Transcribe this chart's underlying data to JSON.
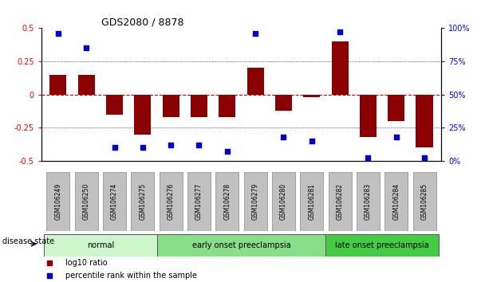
{
  "title": "GDS2080 / 8878",
  "samples": [
    "GSM106249",
    "GSM106250",
    "GSM106274",
    "GSM106275",
    "GSM106276",
    "GSM106277",
    "GSM106278",
    "GSM106279",
    "GSM106280",
    "GSM106281",
    "GSM106282",
    "GSM106283",
    "GSM106284",
    "GSM106285"
  ],
  "log10_ratio": [
    0.15,
    0.15,
    -0.15,
    -0.3,
    -0.17,
    -0.17,
    -0.17,
    0.2,
    -0.12,
    -0.02,
    0.4,
    -0.32,
    -0.2,
    -0.4
  ],
  "percentile_rank": [
    96,
    85,
    10,
    10,
    12,
    12,
    7,
    96,
    18,
    15,
    97,
    2,
    18,
    2
  ],
  "groups": [
    {
      "label": "normal",
      "start": 0,
      "end": 4,
      "color": "#ccf5cc"
    },
    {
      "label": "early onset preeclampsia",
      "start": 4,
      "end": 10,
      "color": "#88dd88"
    },
    {
      "label": "late onset preeclampsia",
      "start": 10,
      "end": 14,
      "color": "#44cc44"
    }
  ],
  "bar_color": "#8B0000",
  "dot_color": "#0000CD",
  "ylim_left": [
    -0.5,
    0.5
  ],
  "ylim_right": [
    0,
    100
  ],
  "yticks_left": [
    -0.5,
    -0.25,
    0,
    0.25,
    0.5
  ],
  "yticks_right": [
    0,
    25,
    50,
    75,
    100
  ],
  "ytick_labels_left": [
    "-0.5",
    "-0.25",
    "0",
    "0.25",
    "0.5"
  ],
  "ytick_labels_right": [
    "0%",
    "25%",
    "50%",
    "75%",
    "100%"
  ],
  "disease_state_label": "disease state",
  "legend_items": [
    {
      "label": "log10 ratio",
      "color": "#8B0000"
    },
    {
      "label": "percentile rank within the sample",
      "color": "#0000CD"
    }
  ],
  "zero_line_color": "#CC0000",
  "grid_color": "#000000",
  "tick_label_bg": "#c0c0c0"
}
